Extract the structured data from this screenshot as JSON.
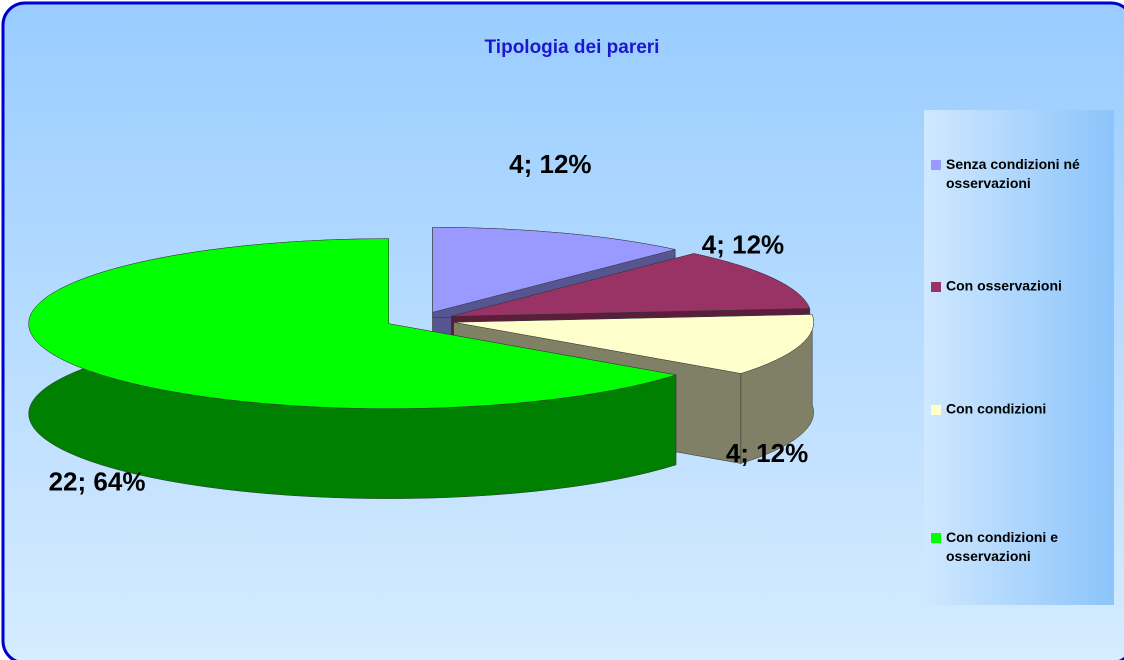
{
  "chart_data": {
    "type": "pie",
    "title": "Tipologia dei pareri",
    "categories": [
      "Senza condizioni né osservazioni",
      "Con osservazioni",
      "Con condizioni",
      "Con condizioni e osservazioni"
    ],
    "values": [
      4,
      4,
      4,
      22
    ],
    "value_labels": [
      "4; 12%",
      "4; 12%",
      "4; 12%",
      "22; 64%"
    ],
    "colors": [
      "#9999ff",
      "#993366",
      "#ffffcc",
      "#00ff00"
    ],
    "side_colors": [
      "#55558f",
      "#5a1e3c",
      "#808066",
      "#008000"
    ],
    "legend": "right"
  }
}
